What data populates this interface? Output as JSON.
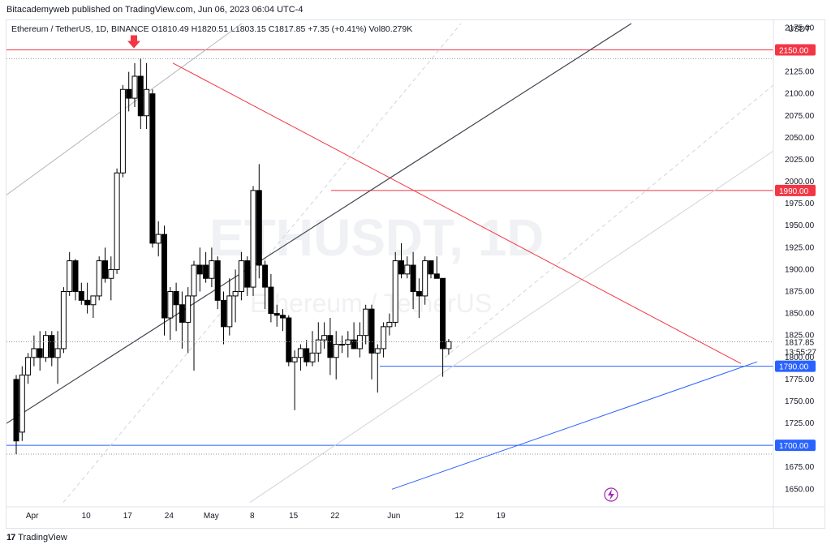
{
  "header": {
    "published_by": "Bitacademyweb published on TradingView.com, Jun 06, 2023 06:04 UTC-4"
  },
  "chart_data": {
    "type": "candlestick",
    "title": "Ethereum / TetherUS, 1D, BINANCE",
    "ohlc_readout": {
      "O": "O1810.49",
      "H": "H1820.51",
      "L": "L1803.15",
      "C": "C1817.85",
      "change": "+7.35 (+0.41%)",
      "volume": "Vol80.279K"
    },
    "watermark_symbol": "ETHUSDT, 1D",
    "watermark_name": "Ethereum / TetherUS",
    "currency": "USDT",
    "ylim": [
      1630,
      2180
    ],
    "y_ticks": [
      "2175.00",
      "2150.00",
      "2125.00",
      "2100.00",
      "2075.00",
      "2050.00",
      "2025.00",
      "2000.00",
      "1975.00",
      "1950.00",
      "1925.00",
      "1900.00",
      "1875.00",
      "1850.00",
      "1825.00",
      "1800.00",
      "1775.00",
      "1750.00",
      "1725.00",
      "1700.00",
      "1675.00",
      "1650.00"
    ],
    "x_ticks": [
      "Apr",
      "10",
      "17",
      "24",
      "May",
      "8",
      "15",
      "22",
      "Jun",
      "12",
      "19"
    ],
    "last_price": "1817.85",
    "countdown": "13:55:27",
    "levels": [
      {
        "value": 2150,
        "label": "2150.00",
        "color": "#f23645"
      },
      {
        "value": 1990,
        "label": "1990.00",
        "color": "#f23645"
      },
      {
        "value": 1790,
        "label": "1790.00",
        "color": "#2962ff"
      },
      {
        "value": 1700,
        "label": "1700.00",
        "color": "#2962ff"
      }
    ],
    "candles": [
      {
        "o": 1775,
        "h": 1780,
        "l": 1690,
        "c": 1705
      },
      {
        "o": 1715,
        "h": 1790,
        "l": 1705,
        "c": 1780
      },
      {
        "o": 1780,
        "h": 1805,
        "l": 1770,
        "c": 1800
      },
      {
        "o": 1800,
        "h": 1825,
        "l": 1790,
        "c": 1810
      },
      {
        "o": 1810,
        "h": 1830,
        "l": 1785,
        "c": 1800
      },
      {
        "o": 1800,
        "h": 1830,
        "l": 1795,
        "c": 1825
      },
      {
        "o": 1825,
        "h": 1830,
        "l": 1790,
        "c": 1800
      },
      {
        "o": 1800,
        "h": 1830,
        "l": 1770,
        "c": 1810
      },
      {
        "o": 1810,
        "h": 1880,
        "l": 1805,
        "c": 1875
      },
      {
        "o": 1875,
        "h": 1920,
        "l": 1870,
        "c": 1910
      },
      {
        "o": 1910,
        "h": 1912,
        "l": 1865,
        "c": 1875
      },
      {
        "o": 1875,
        "h": 1885,
        "l": 1860,
        "c": 1865
      },
      {
        "o": 1865,
        "h": 1885,
        "l": 1850,
        "c": 1860
      },
      {
        "o": 1860,
        "h": 1870,
        "l": 1845,
        "c": 1870
      },
      {
        "o": 1870,
        "h": 1915,
        "l": 1865,
        "c": 1910
      },
      {
        "o": 1910,
        "h": 1925,
        "l": 1885,
        "c": 1890
      },
      {
        "o": 1890,
        "h": 1915,
        "l": 1865,
        "c": 1900
      },
      {
        "o": 1900,
        "h": 2015,
        "l": 1895,
        "c": 2010
      },
      {
        "o": 2010,
        "h": 2110,
        "l": 2005,
        "c": 2105
      },
      {
        "o": 2105,
        "h": 2125,
        "l": 2080,
        "c": 2095
      },
      {
        "o": 2095,
        "h": 2135,
        "l": 2085,
        "c": 2120
      },
      {
        "o": 2120,
        "h": 2140,
        "l": 2060,
        "c": 2075
      },
      {
        "o": 2075,
        "h": 2135,
        "l": 2060,
        "c": 2105
      },
      {
        "o": 2100,
        "h": 2105,
        "l": 1925,
        "c": 1930
      },
      {
        "o": 1930,
        "h": 1955,
        "l": 1915,
        "c": 1940
      },
      {
        "o": 1940,
        "h": 1950,
        "l": 1825,
        "c": 1845
      },
      {
        "o": 1845,
        "h": 1880,
        "l": 1820,
        "c": 1875
      },
      {
        "o": 1875,
        "h": 1885,
        "l": 1830,
        "c": 1860
      },
      {
        "o": 1860,
        "h": 1875,
        "l": 1810,
        "c": 1840
      },
      {
        "o": 1840,
        "h": 1880,
        "l": 1805,
        "c": 1870
      },
      {
        "o": 1870,
        "h": 1910,
        "l": 1785,
        "c": 1905
      },
      {
        "o": 1905,
        "h": 1925,
        "l": 1875,
        "c": 1895
      },
      {
        "o": 1905,
        "h": 1920,
        "l": 1885,
        "c": 1890
      },
      {
        "o": 1890,
        "h": 1925,
        "l": 1880,
        "c": 1910
      },
      {
        "o": 1910,
        "h": 1915,
        "l": 1855,
        "c": 1865
      },
      {
        "o": 1865,
        "h": 1875,
        "l": 1815,
        "c": 1835
      },
      {
        "o": 1835,
        "h": 1890,
        "l": 1825,
        "c": 1870
      },
      {
        "o": 1870,
        "h": 1900,
        "l": 1840,
        "c": 1875
      },
      {
        "o": 1875,
        "h": 1920,
        "l": 1865,
        "c": 1910
      },
      {
        "o": 1910,
        "h": 1915,
        "l": 1870,
        "c": 1880
      },
      {
        "o": 1880,
        "h": 1995,
        "l": 1870,
        "c": 1990
      },
      {
        "o": 1990,
        "h": 2020,
        "l": 1890,
        "c": 1905
      },
      {
        "o": 1905,
        "h": 1910,
        "l": 1855,
        "c": 1880
      },
      {
        "o": 1880,
        "h": 1895,
        "l": 1840,
        "c": 1850
      },
      {
        "o": 1850,
        "h": 1860,
        "l": 1835,
        "c": 1848
      },
      {
        "o": 1848,
        "h": 1855,
        "l": 1830,
        "c": 1845
      },
      {
        "o": 1845,
        "h": 1848,
        "l": 1790,
        "c": 1795
      },
      {
        "o": 1795,
        "h": 1808,
        "l": 1740,
        "c": 1800
      },
      {
        "o": 1800,
        "h": 1815,
        "l": 1785,
        "c": 1810
      },
      {
        "o": 1810,
        "h": 1820,
        "l": 1790,
        "c": 1795
      },
      {
        "o": 1795,
        "h": 1830,
        "l": 1790,
        "c": 1805
      },
      {
        "o": 1805,
        "h": 1840,
        "l": 1795,
        "c": 1820
      },
      {
        "o": 1820,
        "h": 1840,
        "l": 1810,
        "c": 1825
      },
      {
        "o": 1825,
        "h": 1845,
        "l": 1780,
        "c": 1800
      },
      {
        "o": 1800,
        "h": 1830,
        "l": 1775,
        "c": 1815
      },
      {
        "o": 1815,
        "h": 1825,
        "l": 1805,
        "c": 1815
      },
      {
        "o": 1815,
        "h": 1830,
        "l": 1800,
        "c": 1820
      },
      {
        "o": 1820,
        "h": 1840,
        "l": 1810,
        "c": 1810
      },
      {
        "o": 1810,
        "h": 1840,
        "l": 1800,
        "c": 1825
      },
      {
        "o": 1825,
        "h": 1860,
        "l": 1815,
        "c": 1855
      },
      {
        "o": 1855,
        "h": 1860,
        "l": 1775,
        "c": 1805
      },
      {
        "o": 1805,
        "h": 1815,
        "l": 1760,
        "c": 1810
      },
      {
        "o": 1810,
        "h": 1840,
        "l": 1800,
        "c": 1835
      },
      {
        "o": 1835,
        "h": 1850,
        "l": 1825,
        "c": 1840
      },
      {
        "o": 1840,
        "h": 1920,
        "l": 1835,
        "c": 1910
      },
      {
        "o": 1910,
        "h": 1930,
        "l": 1890,
        "c": 1895
      },
      {
        "o": 1895,
        "h": 1915,
        "l": 1890,
        "c": 1905
      },
      {
        "o": 1905,
        "h": 1920,
        "l": 1855,
        "c": 1875
      },
      {
        "o": 1875,
        "h": 1890,
        "l": 1845,
        "c": 1870
      },
      {
        "o": 1870,
        "h": 1915,
        "l": 1860,
        "c": 1910
      },
      {
        "o": 1910,
        "h": 1910,
        "l": 1890,
        "c": 1895
      },
      {
        "o": 1895,
        "h": 1915,
        "l": 1890,
        "c": 1890
      },
      {
        "o": 1890,
        "h": 1890,
        "l": 1778,
        "c": 1810
      },
      {
        "o": 1810,
        "h": 1821,
        "l": 1803,
        "c": 1818
      }
    ],
    "candles_start": "2023-03-29",
    "annotations": [
      "down-arrow marker above 2023-04-18 high"
    ]
  },
  "branding": {
    "logo_text": "TradingView"
  },
  "colors": {
    "up": "#ffffff",
    "down": "#000000",
    "resistance": "#f23645",
    "support": "#2962ff",
    "axis_text": "#131722"
  }
}
